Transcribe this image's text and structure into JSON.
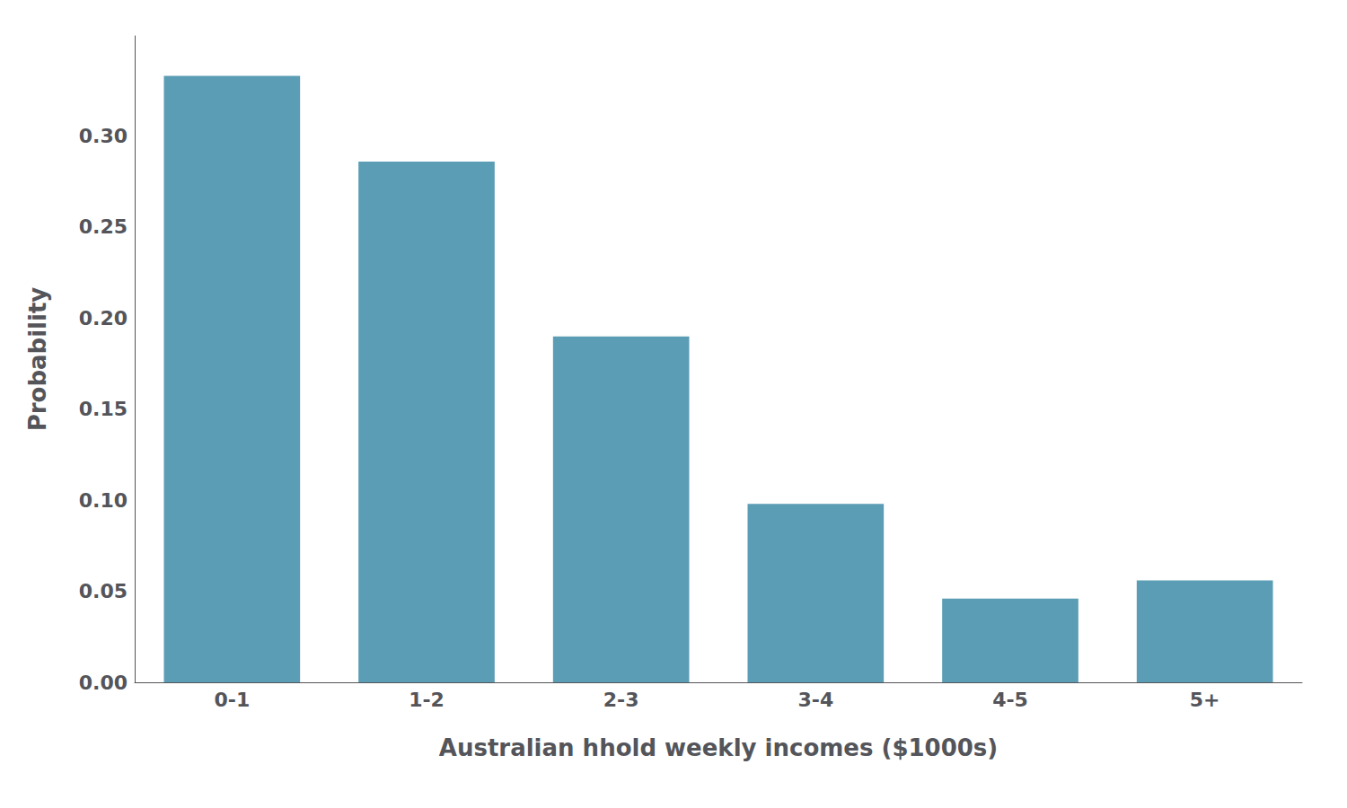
{
  "chart_data": {
    "type": "bar",
    "categories": [
      "0-1",
      "1-2",
      "2-3",
      "3-4",
      "4-5",
      "5+"
    ],
    "values": [
      0.333,
      0.286,
      0.19,
      0.098,
      0.046,
      0.056
    ],
    "color": "#5B9DB5",
    "xlabel": "Australian hhold weekly incomes ($1000s)",
    "ylabel": "Probability",
    "ylim": [
      0,
      0.355
    ],
    "yticks": [
      {
        "value": 0.0,
        "label": "0.00"
      },
      {
        "value": 0.05,
        "label": "0.05"
      },
      {
        "value": 0.1,
        "label": "0.10"
      },
      {
        "value": 0.15,
        "label": "0.15"
      },
      {
        "value": 0.2,
        "label": "0.20"
      },
      {
        "value": 0.25,
        "label": "0.25"
      },
      {
        "value": 0.3,
        "label": "0.30"
      }
    ],
    "grid": false
  }
}
